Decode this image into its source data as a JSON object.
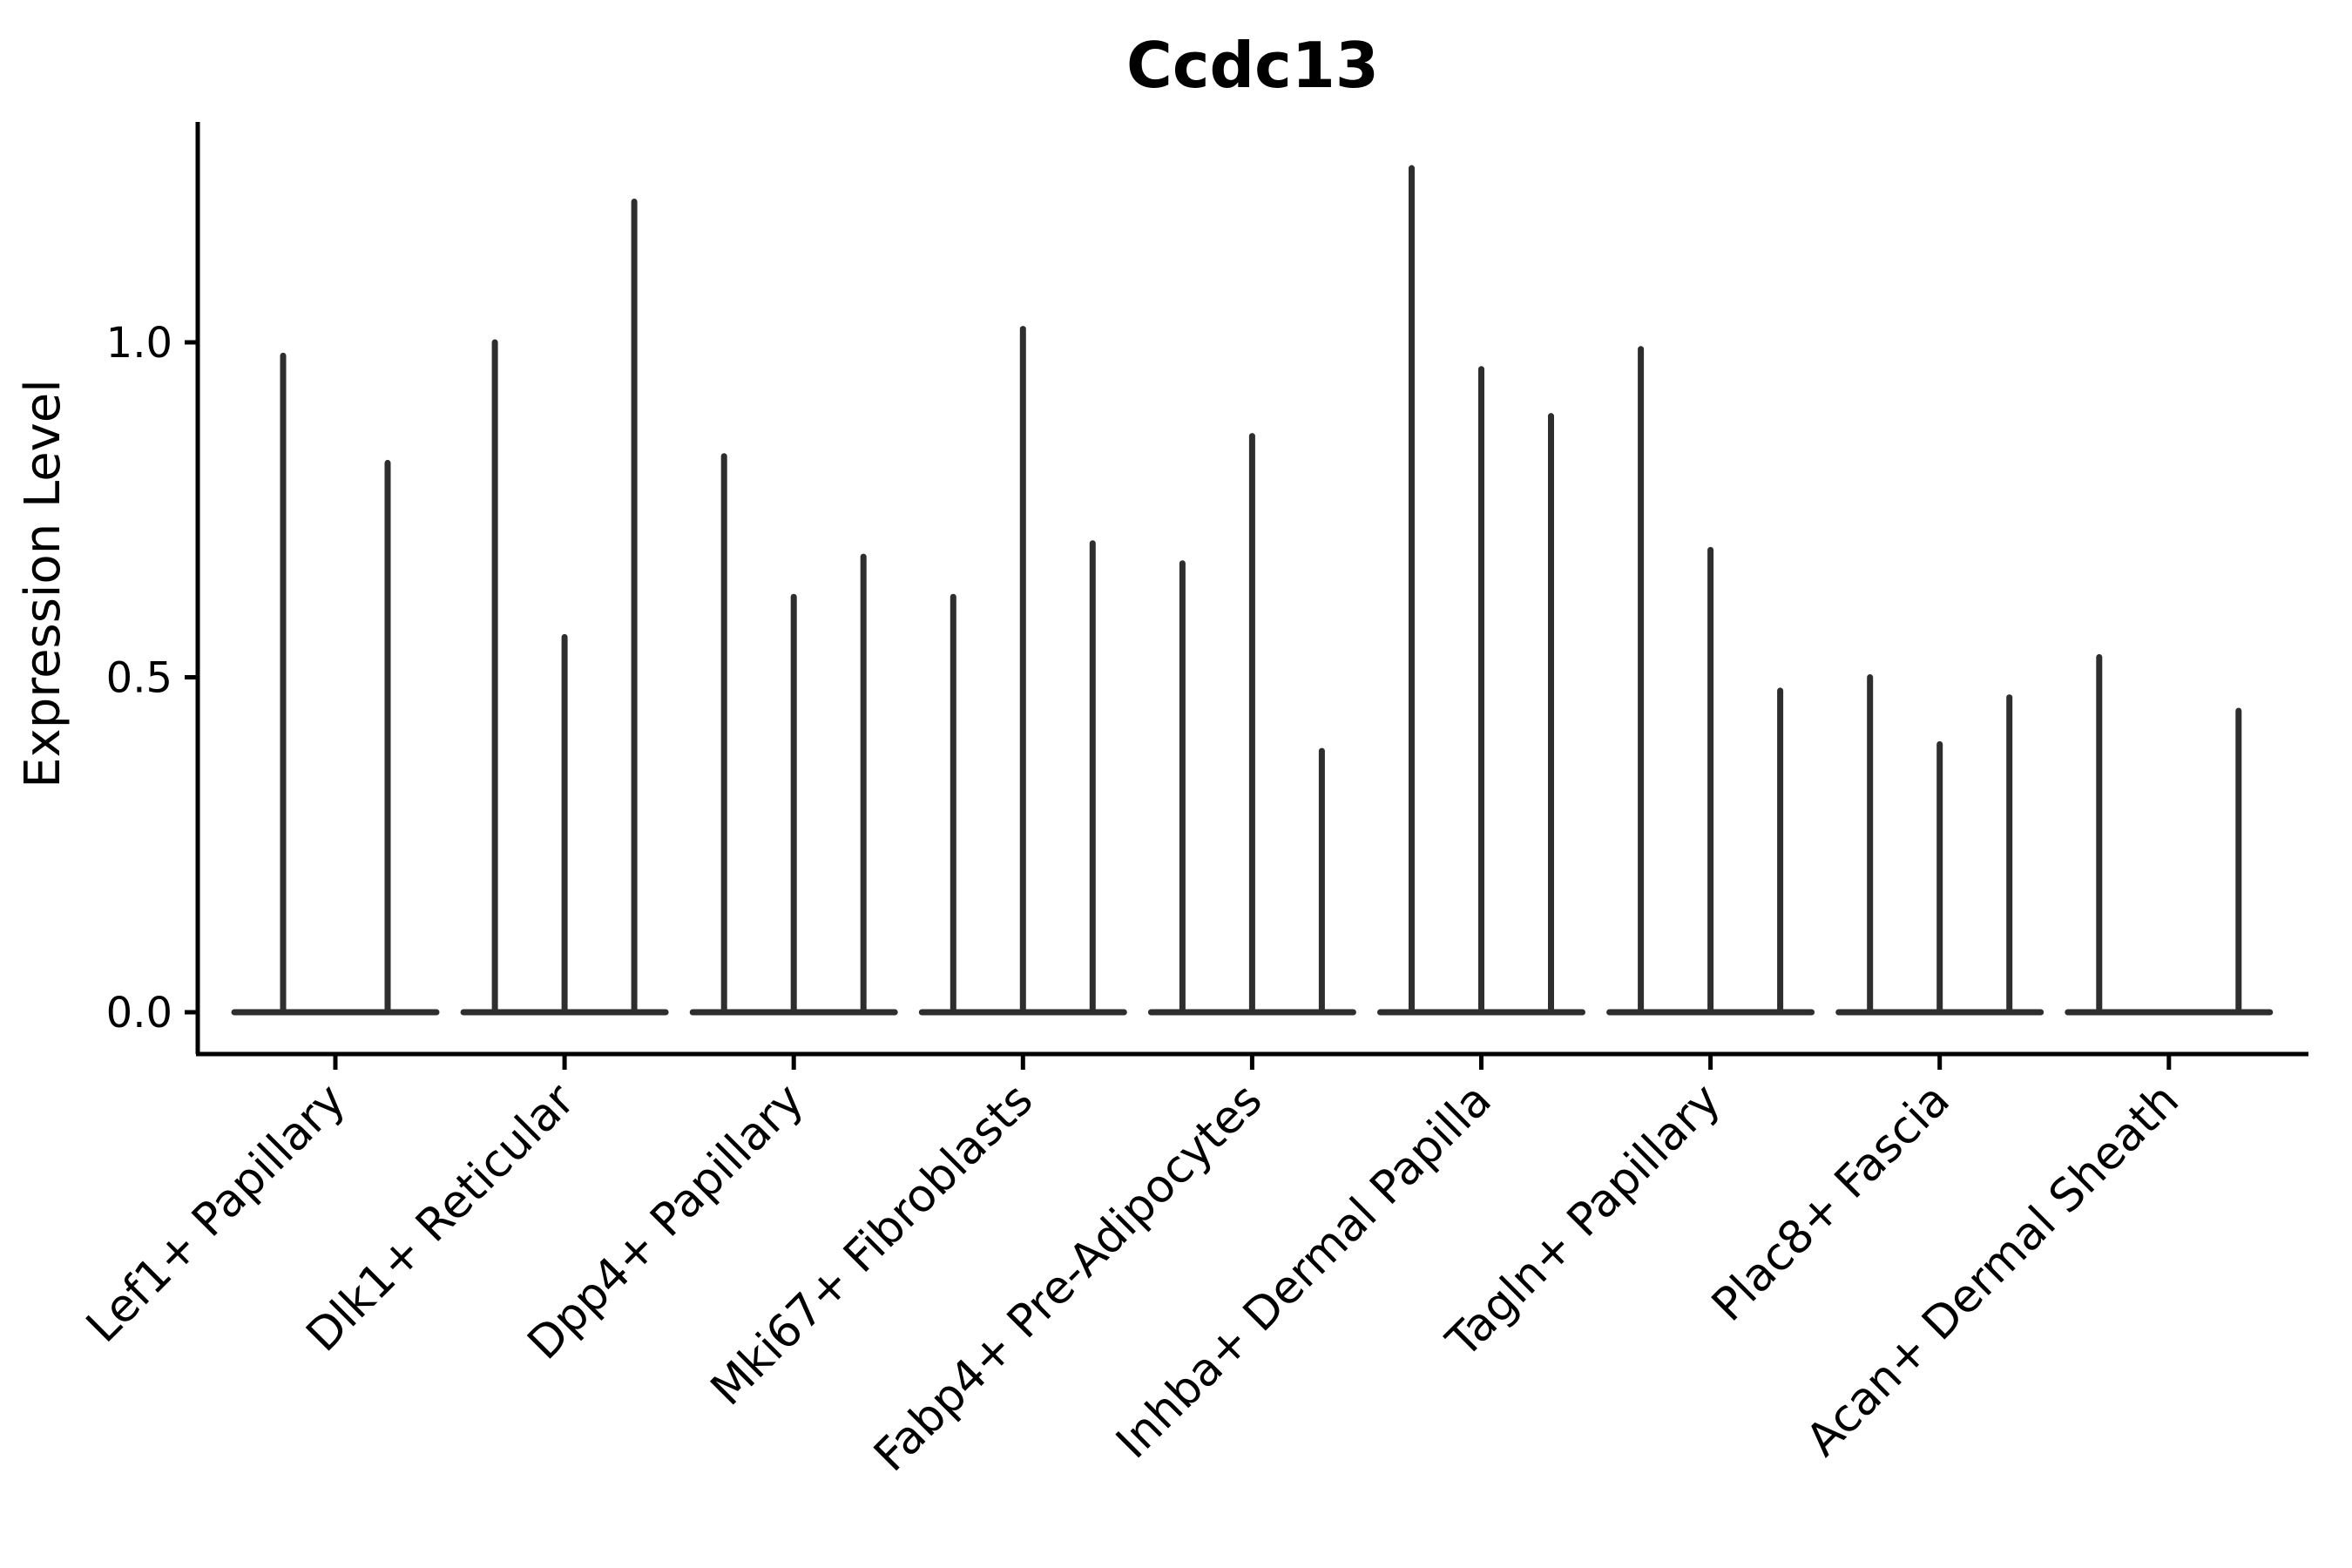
{
  "chart_data": {
    "type": "violin",
    "title": "Ccdc13",
    "xlabel": "",
    "ylabel": "Expression Level",
    "yticks": [
      0.0,
      0.5,
      1.0
    ],
    "ytick_labels": [
      "0.0",
      "0.5",
      "1.0"
    ],
    "ylim": [
      -0.06,
      1.33
    ],
    "grid": false,
    "legend_position": "none",
    "categories": [
      "Lef1+ Papillary",
      "Dlk1+ Reticular",
      "Dpp4+ Papillary",
      "Mki67+ Fibroblasts",
      "Fabp4+ Pre-Adipocytes",
      "Inhba+ Dermal Papilla",
      "Tagln+ Papillary",
      "Plac8+ Fascia",
      "Acan+ Dermal Sheath"
    ],
    "groups": [
      {
        "label": "Lef1+ Papillary",
        "violin_max_values": [
          0.98,
          0.82
        ]
      },
      {
        "label": "Dlk1+ Reticular",
        "violin_max_values": [
          1.0,
          0.56,
          1.21
        ]
      },
      {
        "label": "Dpp4+ Papillary",
        "violin_max_values": [
          0.83,
          0.62,
          0.68
        ]
      },
      {
        "label": "Mki67+ Fibroblasts",
        "violin_max_values": [
          0.62,
          1.02,
          0.7
        ]
      },
      {
        "label": "Fabp4+ Pre-Adipocytes",
        "violin_max_values": [
          0.67,
          0.86,
          0.39
        ]
      },
      {
        "label": "Inhba+ Dermal Papilla",
        "violin_max_values": [
          1.26,
          0.96,
          0.89
        ]
      },
      {
        "label": "Tagln+ Papillary",
        "violin_max_values": [
          0.99,
          0.69,
          0.48
        ]
      },
      {
        "label": "Plac8+ Fascia",
        "violin_max_values": [
          0.5,
          0.4,
          0.47
        ]
      },
      {
        "label": "Acan+ Dermal Sheath",
        "violin_max_values": [
          0.53,
          0.0,
          0.45
        ]
      }
    ],
    "colors": {
      "violin": "#2e2e2e",
      "axis": "#000000",
      "text": "#000000",
      "background": "#ffffff"
    }
  }
}
